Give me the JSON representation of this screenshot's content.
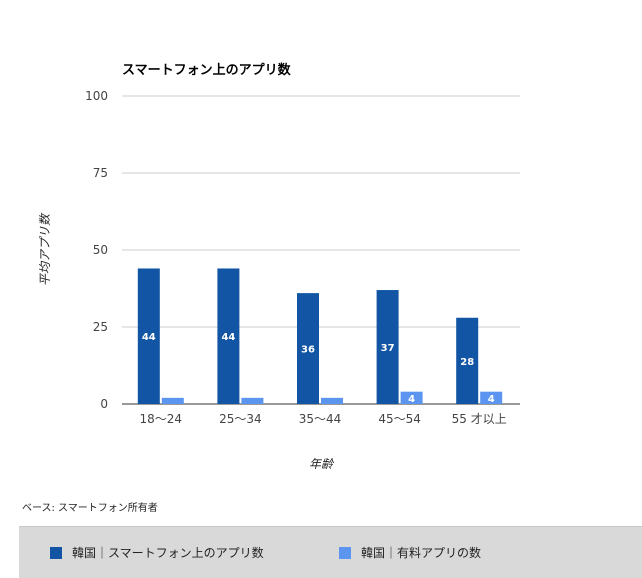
{
  "chart_data": {
    "type": "bar",
    "title": "スマートフォン上のアプリ数",
    "xlabel": "年齢",
    "ylabel": "平均アプリ数",
    "categories": [
      "18〜24",
      "25〜34",
      "35〜44",
      "45〜54",
      "55 才以上"
    ],
    "ylim": [
      0,
      100
    ],
    "yticks": [
      0,
      25,
      50,
      75,
      100
    ],
    "grid": true,
    "legend_position": "bottom",
    "series": [
      {
        "name": "韓国｜スマートフォン上のアプリ数",
        "color": "#1155a4",
        "values": [
          44,
          44,
          36,
          37,
          28
        ],
        "labels": [
          "44",
          "44",
          "36",
          "37",
          "28"
        ]
      },
      {
        "name": "韓国｜有料アプリの数",
        "color": "#5c95f0",
        "values": [
          2,
          2,
          2,
          4,
          4
        ],
        "labels": [
          "",
          "",
          "",
          "4",
          "4"
        ]
      }
    ]
  },
  "note": "ベース: スマートフォン所有者",
  "colors": {
    "grid": "#cccccc",
    "axis": "#333333",
    "legend_bg": "#d9d9d9"
  }
}
